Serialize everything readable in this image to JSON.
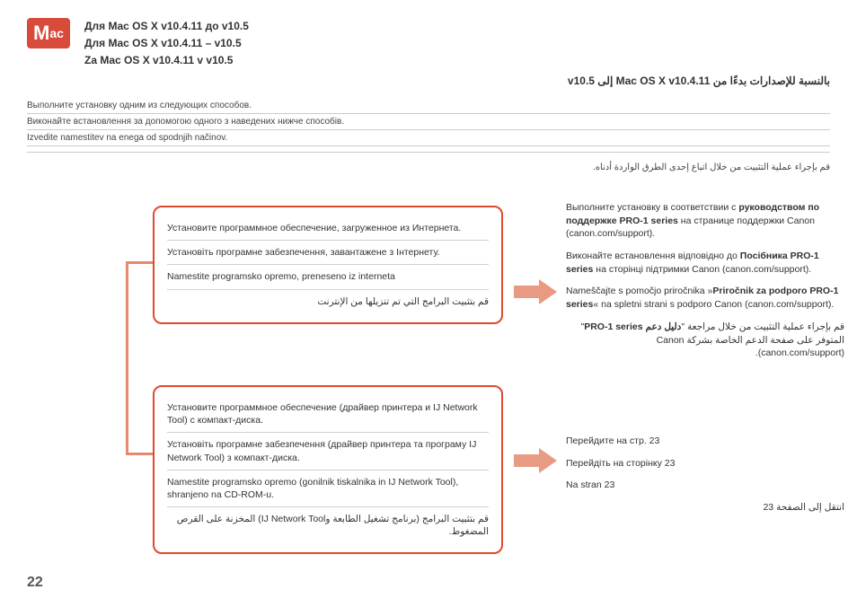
{
  "mac_badge": {
    "big": "M",
    "small": "ac"
  },
  "titles": {
    "ru": "Для Mac OS X v10.4.11 до v10.5",
    "uk": "Для Mac OS X v10.4.11 – v10.5",
    "sl": "Za Mac OS X v10.4.11 v v10.5",
    "ar": "بالنسبة للإصدارات بدءًا من Mac OS X v10.4.11 إلى v10.5"
  },
  "intro": {
    "ru": "Выполните установку одним из следующих способов.",
    "uk": "Виконайте встановлення за допомогою одного з наведених нижче способів.",
    "sl": "Izvedite namestitev na enega od spodnjih načinov.",
    "ar": "قم بإجراء عملية التثبيت من خلال اتباع إحدى الطرق الواردة أدناه."
  },
  "box1": {
    "ru": "Установите программное обеспечение, загруженное из Интернета.",
    "uk": "Установіть програмне забезпечення, завантажене з Інтернету.",
    "sl": "Namestite programsko opremo, preneseno iz interneta",
    "ar": "قم بتثبيت البرامج التي تم تنزيلها من الإنترنت"
  },
  "box2": {
    "ru": "Установите программное обеспечение (драйвер принтера и IJ Network Tool) с компакт-диска.",
    "uk": "Установіть програмне забезпечення (драйвер принтера та програму IJ Network Tool) з компакт-диска.",
    "sl": "Namestite programsko opremo (gonilnik tiskalnika in IJ Network Tool), shranjeno na CD-ROM-u.",
    "ar": "قم بتثبيت البرامج (برنامج تشغيل الطابعة وIJ Network Tool) المخزنة على القرص المضغوط."
  },
  "right1": {
    "ru_a": "Выполните установку в соответствии с ",
    "ru_b": "руководством по поддержке PRO-1 series",
    "ru_c": " на странице поддержки Canon (canon.com/support).",
    "uk_a": "Виконайте встановлення відповідно до ",
    "uk_b": "Посібника PRO-1 series",
    "uk_c": " на сторінці підтримки Canon (canon.com/support).",
    "sl_a": "Nameščajte s pomočjo priročnika »",
    "sl_b": "Priročnik za podporo PRO-1 series",
    "sl_c": "« na spletni strani s podporo Canon (canon.com/support).",
    "ar_a": "قم بإجراء عملية التثبيت من خلال مراجعة \"",
    "ar_b": "دليل دعم PRO-1 series",
    "ar_c": "\" المتوفر على صفحة الدعم الخاصة بشركة Canon (canon.com/support)."
  },
  "right2": {
    "ru": "Перейдите на стр. 23",
    "uk": "Перейдіть на сторінку 23",
    "sl": "Na stran 23",
    "ar": "انتقل إلى الصفحة 23"
  },
  "page_number": "22",
  "colors": {
    "badge": "#d84a3a",
    "box_border": "#e04a2f",
    "connector": "#e58a6f",
    "arrow": "#e99a83",
    "divider": "#cccccc"
  }
}
